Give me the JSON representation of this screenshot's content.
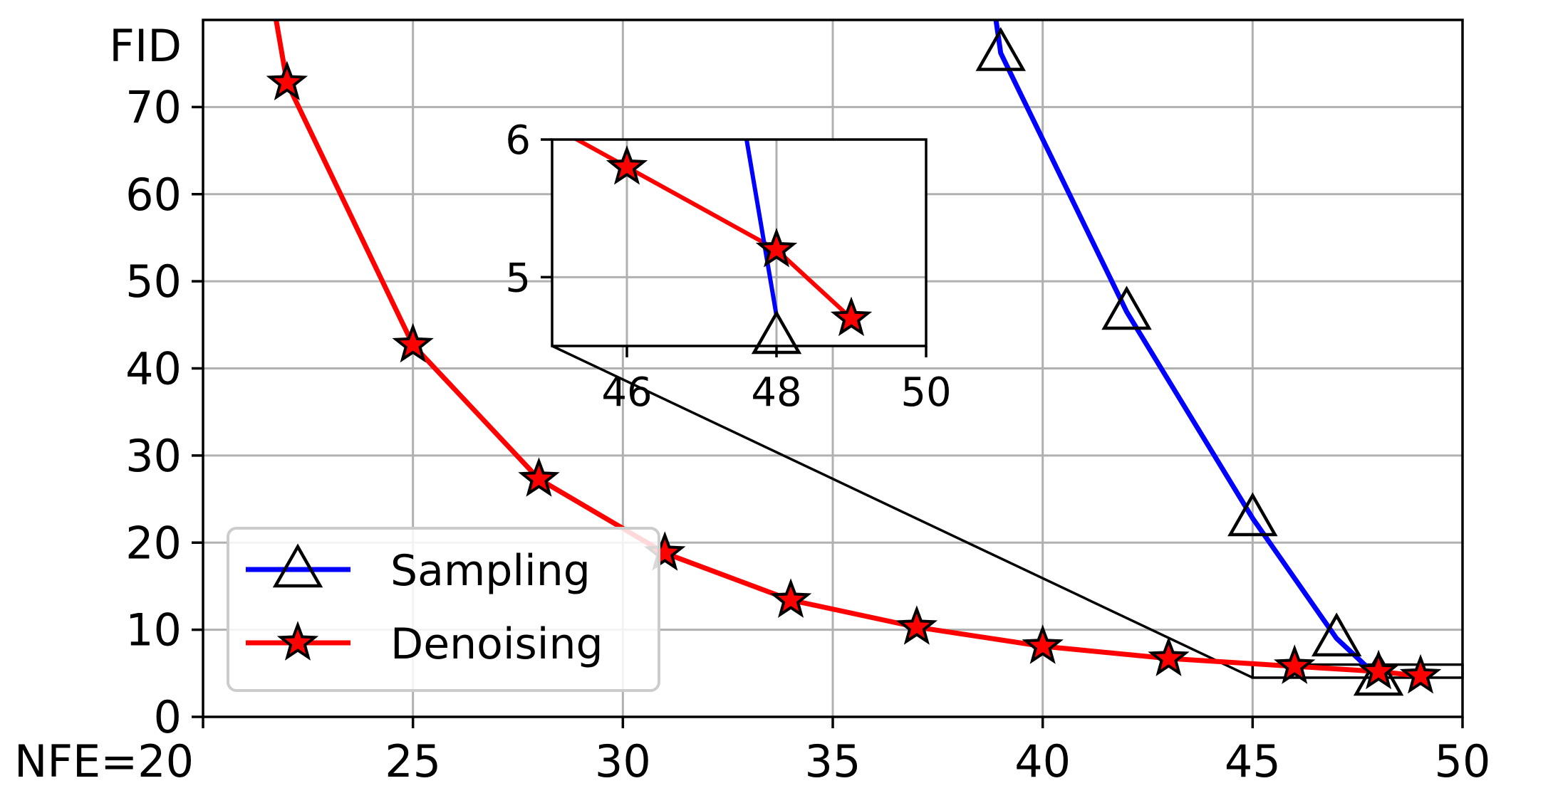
{
  "chart_data": {
    "type": "line",
    "xlabel": "",
    "ylabel": "",
    "x_first_tick_label": "NFE=20",
    "y_top_label": "FID",
    "xlim": [
      20,
      50
    ],
    "ylim": [
      0,
      80
    ],
    "xticks": [
      20,
      25,
      30,
      35,
      40,
      45,
      50
    ],
    "yticks": [
      0,
      10,
      20,
      30,
      40,
      50,
      60,
      70
    ],
    "grid": true,
    "legend_position": "bottom-left",
    "series": [
      {
        "name": "Sampling",
        "color": "#0000ff",
        "marker": "triangle",
        "x": [
          38.5,
          39,
          42,
          45,
          47,
          48
        ],
        "y": [
          93,
          76.2,
          46.5,
          22.8,
          9.0,
          4.5
        ]
      },
      {
        "name": "Denoising",
        "color": "#ff0000",
        "marker": "star",
        "x": [
          21.2,
          22,
          25,
          28,
          31,
          34,
          37,
          40,
          43,
          46,
          48,
          49
        ],
        "y": [
          95,
          72.8,
          42.7,
          27.3,
          18.8,
          13.4,
          10.3,
          8.1,
          6.7,
          5.8,
          5.2,
          4.7
        ]
      }
    ],
    "inset": {
      "xlim": [
        45,
        50
      ],
      "ylim": [
        4.5,
        6.0
      ],
      "xticks": [
        46,
        48,
        50
      ],
      "yticks": [
        5,
        6
      ],
      "zoom_region": {
        "x": [
          45,
          50
        ],
        "y": [
          4.5,
          6.0
        ]
      },
      "sampling_line": {
        "x": [
          47.6,
          48.0
        ],
        "y": [
          6.0,
          4.72
        ]
      }
    }
  }
}
